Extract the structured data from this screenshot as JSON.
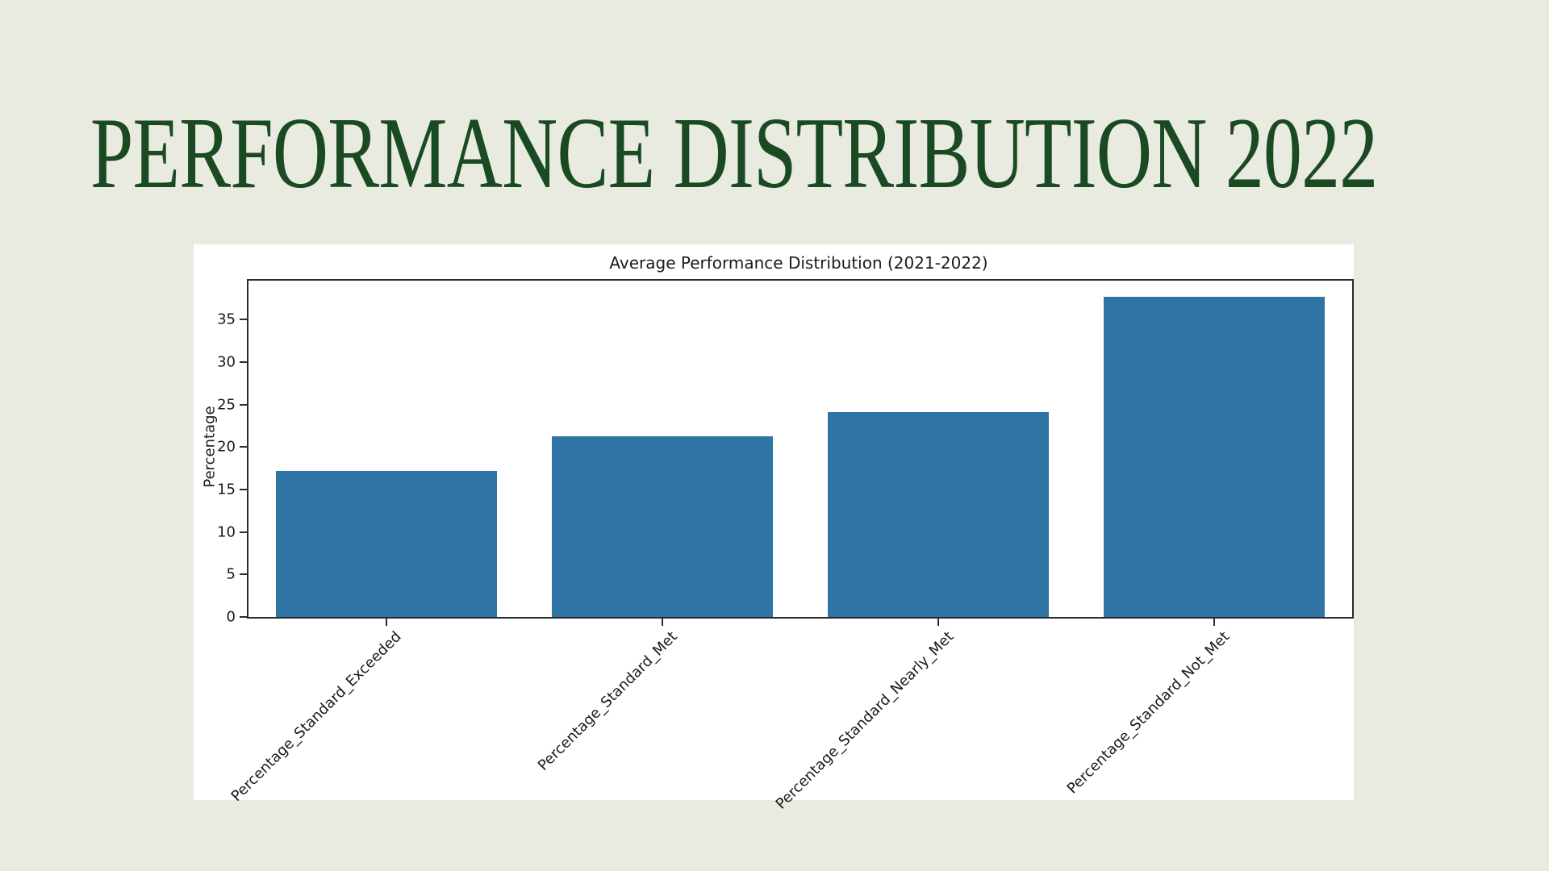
{
  "slide": {
    "title": "PERFORMANCE DISTRIBUTION 2022",
    "colors": {
      "background": "#e9ebe1",
      "title_text": "#1a4a21"
    }
  },
  "chart_data": {
    "type": "bar",
    "title": "Average Performance Distribution (2021-2022)",
    "categories": [
      "Percentage_Standard_Exceeded",
      "Percentage_Standard_Met",
      "Percentage_Standard_Nearly_Met",
      "Percentage_Standard_Not_Met"
    ],
    "values": [
      17.2,
      21.3,
      24.1,
      37.7
    ],
    "xlabel": "",
    "ylabel": "Percentage",
    "yticks": [
      0,
      5,
      10,
      15,
      20,
      25,
      30,
      35
    ],
    "ylim": [
      0,
      39.6
    ],
    "grid": false,
    "legend": false,
    "x_tick_rotation_deg": 45,
    "bar_width_fraction": 0.8,
    "colors": {
      "bar": "#2e74a4",
      "figure_background": "#ffffff",
      "axis": "#2b2b2b",
      "text": "#1a1a1a"
    }
  }
}
